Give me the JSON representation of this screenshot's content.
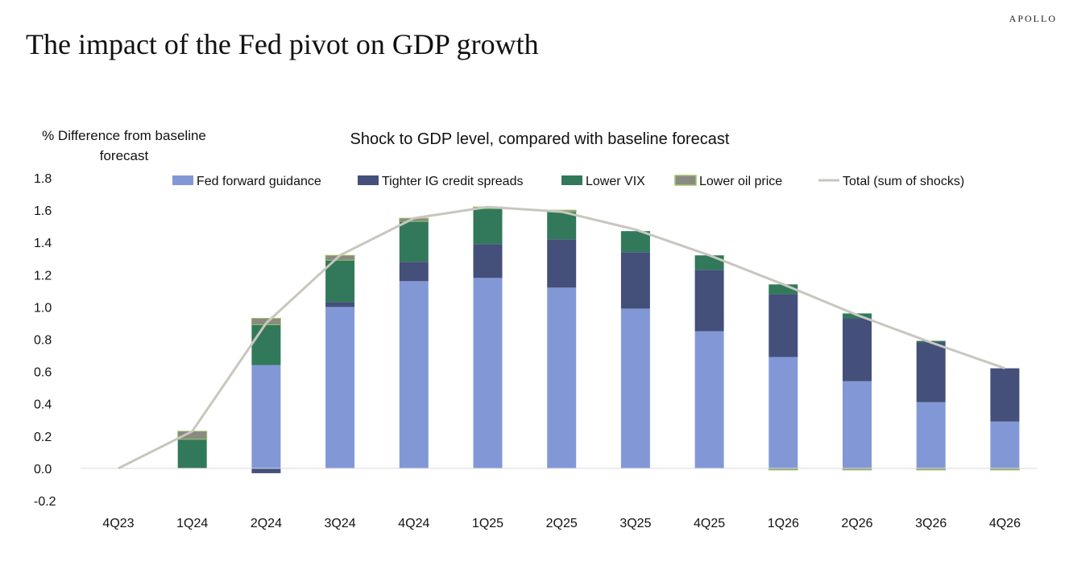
{
  "brand": "APOLLO",
  "page_title": "The impact of the Fed pivot on GDP growth",
  "chart_data": {
    "type": "bar",
    "stacked": true,
    "title": "Shock to GDP level, compared with baseline forecast",
    "ylabel": "% Difference from baseline forecast",
    "xlabel": "",
    "ylim": [
      -0.2,
      1.8
    ],
    "yticks": [
      "1.8",
      "1.6",
      "1.4",
      "1.2",
      "1.0",
      "0.8",
      "0.6",
      "0.4",
      "0.2",
      "0.0",
      "-0.2"
    ],
    "grid": false,
    "legend_position": "top",
    "categories": [
      "4Q23",
      "1Q24",
      "2Q24",
      "3Q24",
      "4Q24",
      "1Q25",
      "2Q25",
      "3Q25",
      "4Q25",
      "1Q26",
      "2Q26",
      "3Q26",
      "4Q26"
    ],
    "series": [
      {
        "name": "Fed forward guidance",
        "kind": "bar",
        "color": "#8298d6",
        "values": [
          0,
          0,
          0.64,
          1.0,
          1.16,
          1.18,
          1.12,
          0.99,
          0.85,
          0.69,
          0.54,
          0.41,
          0.29
        ]
      },
      {
        "name": "Tighter IG credit spreads",
        "kind": "bar",
        "color": "#444f7a",
        "values": [
          0,
          0,
          -0.03,
          0.03,
          0.12,
          0.21,
          0.3,
          0.35,
          0.38,
          0.39,
          0.39,
          0.37,
          0.33
        ]
      },
      {
        "name": "Lower VIX",
        "kind": "bar",
        "color": "#31795a",
        "values": [
          0,
          0.18,
          0.25,
          0.26,
          0.25,
          0.22,
          0.17,
          0.13,
          0.09,
          0.06,
          0.03,
          0.01,
          0
        ]
      },
      {
        "name": "Lower oil price",
        "kind": "bar",
        "color": "#8a8a82",
        "edge": "#9fc46a",
        "values": [
          0,
          0.05,
          0.04,
          0.03,
          0.02,
          0.01,
          0.01,
          0,
          0,
          -0.01,
          -0.01,
          -0.01,
          -0.01
        ]
      },
      {
        "name": "Total (sum of shocks)",
        "kind": "line",
        "color": "#c9c6bf",
        "values": [
          0,
          0.23,
          0.9,
          1.32,
          1.55,
          1.62,
          1.59,
          1.48,
          1.32,
          1.14,
          0.95,
          0.78,
          0.62
        ]
      }
    ]
  }
}
